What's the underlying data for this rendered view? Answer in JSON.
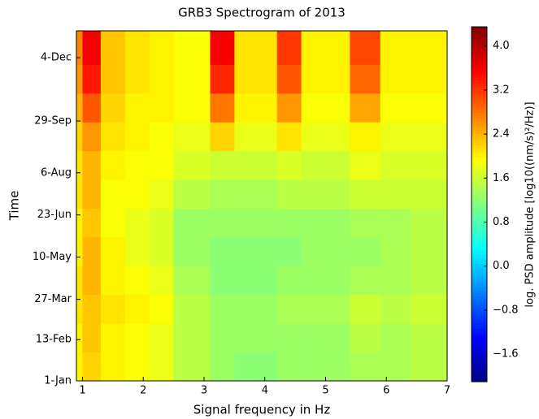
{
  "chart_data": {
    "type": "heatmap",
    "title": "GRB3 Spectrogram of 2013",
    "x_label": "Signal frequency in Hz",
    "y_label": "Time",
    "colorbar_label": "log. PSD amplitude [log10((nm/s)²/Hz)]",
    "colormap": "jet",
    "xlim": [
      0.9,
      7.0
    ],
    "xticks": [
      1,
      2,
      3,
      4,
      5,
      6,
      7
    ],
    "ylim": [
      0,
      365
    ],
    "yticks": [
      {
        "value": 0,
        "label": "1-Jan"
      },
      {
        "value": 43,
        "label": "13-Feb"
      },
      {
        "value": 85,
        "label": "27-Mar"
      },
      {
        "value": 129,
        "label": "10-May"
      },
      {
        "value": 173,
        "label": "23-Jun"
      },
      {
        "value": 217,
        "label": "6-Aug"
      },
      {
        "value": 271,
        "label": "29-Sep"
      },
      {
        "value": 337,
        "label": "4-Dec"
      }
    ],
    "zlim": [
      -2.1,
      4.35
    ],
    "zticks": [
      {
        "value": -1.6,
        "label": "−1.6"
      },
      {
        "value": -0.8,
        "label": "−0.8"
      },
      {
        "value": 0,
        "label": "0.0"
      },
      0.8,
      1.6,
      2.4,
      3.2,
      {
        "value": 4,
        "label": "4.0"
      }
    ],
    "x_edges": [
      0.9,
      1.0,
      1.3,
      1.7,
      2.1,
      2.5,
      3.1,
      3.5,
      4.2,
      4.6,
      5.4,
      5.9,
      6.4,
      7.0
    ],
    "y_edges": [
      0,
      30,
      60,
      90,
      120,
      150,
      180,
      210,
      240,
      270,
      300,
      330,
      365
    ],
    "z": [
      [
        2.0,
        2.2,
        2.0,
        1.9,
        1.8,
        1.5,
        1.3,
        1.2,
        1.3,
        1.3,
        1.4,
        1.4,
        1.5
      ],
      [
        2.0,
        2.3,
        2.0,
        1.9,
        1.8,
        1.5,
        1.3,
        1.3,
        1.3,
        1.3,
        1.5,
        1.4,
        1.5
      ],
      [
        2.1,
        2.3,
        2.1,
        2.0,
        1.9,
        1.5,
        1.3,
        1.3,
        1.4,
        1.4,
        1.6,
        1.5,
        1.6
      ],
      [
        2.1,
        2.4,
        2.0,
        1.9,
        1.8,
        1.4,
        1.2,
        1.2,
        1.3,
        1.3,
        1.4,
        1.4,
        1.5
      ],
      [
        2.0,
        2.4,
        2.0,
        1.8,
        1.7,
        1.3,
        1.2,
        1.2,
        1.2,
        1.3,
        1.3,
        1.4,
        1.5
      ],
      [
        2.0,
        2.3,
        1.9,
        1.8,
        1.7,
        1.3,
        1.3,
        1.3,
        1.3,
        1.3,
        1.4,
        1.4,
        1.5
      ],
      [
        2.1,
        2.4,
        1.9,
        1.9,
        1.8,
        1.5,
        1.4,
        1.4,
        1.5,
        1.5,
        1.6,
        1.6,
        1.6
      ],
      [
        2.1,
        2.4,
        2.0,
        1.9,
        1.9,
        1.7,
        1.6,
        1.6,
        1.7,
        1.6,
        1.8,
        1.7,
        1.7
      ],
      [
        2.2,
        2.6,
        2.1,
        2.0,
        1.9,
        1.8,
        2.2,
        1.8,
        2.1,
        1.8,
        2.0,
        1.8,
        1.8
      ],
      [
        2.4,
        3.0,
        2.2,
        2.0,
        2.0,
        1.9,
        2.8,
        2.0,
        2.6,
        1.9,
        2.5,
        1.9,
        1.9
      ],
      [
        2.6,
        3.4,
        2.3,
        2.1,
        2.0,
        1.9,
        3.3,
        2.1,
        3.0,
        2.0,
        2.9,
        2.0,
        2.0
      ],
      [
        2.7,
        3.6,
        2.3,
        2.1,
        2.0,
        1.9,
        3.6,
        2.1,
        3.2,
        2.0,
        3.1,
        2.0,
        2.0
      ]
    ]
  }
}
